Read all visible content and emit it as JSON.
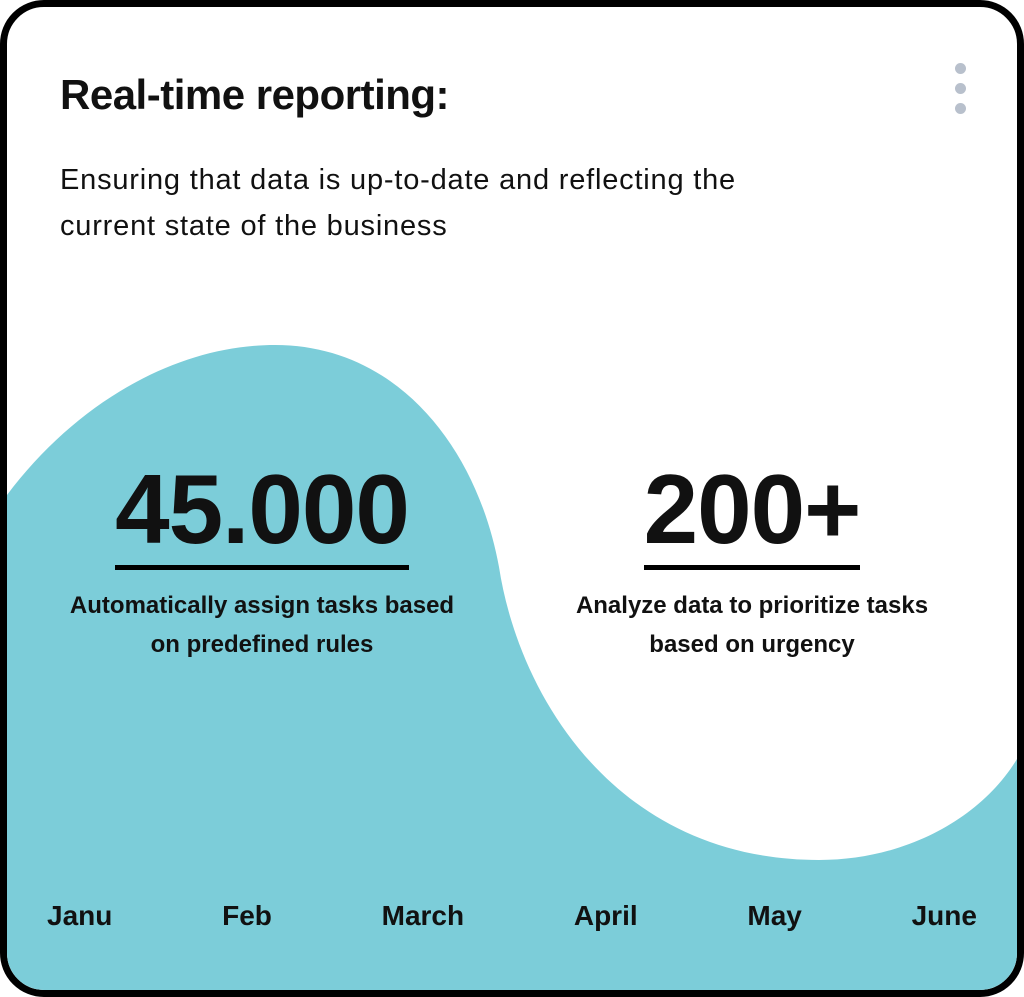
{
  "header": {
    "title": "Real-time reporting:",
    "subtitle": "Ensuring that data is up-to-date and reflecting the current state of the business",
    "menu_icon": "vertical-ellipsis-icon"
  },
  "stats": [
    {
      "value": "45.000",
      "caption": "Automatically assign tasks based on predefined rules"
    },
    {
      "value": "200+",
      "caption": "Analyze data to prioritize tasks based on urgency"
    }
  ],
  "months": [
    "Janu",
    "Feb",
    "March",
    "April",
    "May",
    "June"
  ],
  "colors": {
    "accent": "#7ccdd9",
    "border": "#000000",
    "menu_dots": "#b8c0cc"
  }
}
